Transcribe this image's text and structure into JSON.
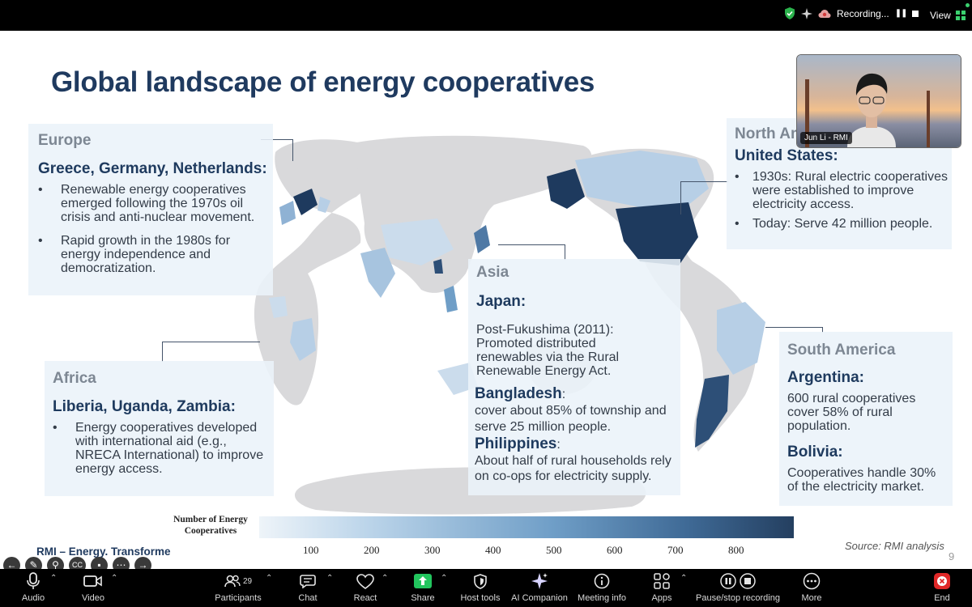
{
  "topbar": {
    "recording_label": "Recording...",
    "view_label": "View"
  },
  "slide": {
    "title": "Global landscape of energy cooperatives",
    "europe": {
      "region": "Europe",
      "countries": "Greece, Germany, Netherlands:",
      "bullets": [
        "Renewable energy cooperatives emerged following the 1970s oil crisis and anti-nuclear movement.",
        "Rapid growth in the 1980s for energy independence and democratization."
      ]
    },
    "north_america": {
      "region": "North Am",
      "country": "United States:",
      "bullets": [
        "1930s: Rural electric cooperatives were established to improve electricity access.",
        "Today: Serve 42 million people."
      ]
    },
    "asia": {
      "region": "Asia",
      "japan_label": "Japan:",
      "japan_text": "Post-Fukushima (2011): Promoted distributed renewables via the Rural Renewable Energy Act.",
      "bangladesh_label": "Bangladesh",
      "bangladesh_text": "cover about 85% of township and serve 25 million people.",
      "philippines_label": "Philippines",
      "philippines_text": "About half of rural households rely on co-ops for electricity supply."
    },
    "africa": {
      "region": "Africa",
      "countries": "Liberia, Uganda, Zambia:",
      "bullets": [
        "Energy cooperatives developed with international aid (e.g., NRECA International) to improve energy access."
      ]
    },
    "south_america": {
      "region": "South America",
      "argentina_label": "Argentina:",
      "argentina_text": "600 rural cooperatives cover 58% of rural population.",
      "bolivia_label": "Bolivia:",
      "bolivia_text": "Cooperatives handle 30% of the electricity market."
    },
    "legend": {
      "title": "Number of Energy Cooperatives",
      "ticks": [
        "100",
        "200",
        "300",
        "400",
        "500",
        "600",
        "700",
        "800"
      ]
    },
    "source": "Source: RMI analysis",
    "footer": "RMI – Energy. Transforme",
    "page_number": "9"
  },
  "video": {
    "participant_name": "Jun Li - RMI"
  },
  "toolbar": {
    "audio": "Audio",
    "video": "Video",
    "participants": "Participants",
    "participant_count": "29",
    "chat": "Chat",
    "react": "React",
    "share": "Share",
    "host_tools": "Host tools",
    "ai_companion": "AI Companion",
    "meeting_info": "Meeting info",
    "apps": "Apps",
    "pause_recording": "Pause/stop recording",
    "more": "More",
    "end": "End"
  },
  "colors": {
    "accent_dark": "#1e3a5e",
    "share_green": "#22c55e",
    "end_red": "#e02828"
  }
}
